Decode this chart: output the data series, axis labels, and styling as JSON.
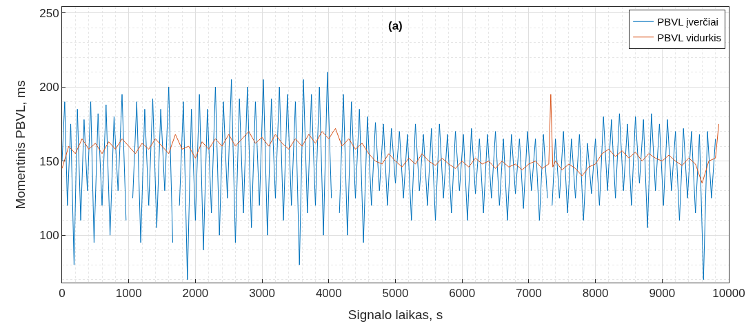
{
  "chart_data": {
    "type": "line",
    "xlabel": "Signalo laikas, s",
    "ylabel": "Momentinis PBVL, ms",
    "annotations": [
      "(a)"
    ],
    "xlim": [
      0,
      10000
    ],
    "xticks": [
      0,
      1000,
      2000,
      3000,
      4000,
      5000,
      6000,
      7000,
      8000,
      9000,
      10000
    ],
    "ylim": [
      68,
      254
    ],
    "yticks": [
      100,
      150,
      200,
      250
    ],
    "grid": true,
    "legend": "top right",
    "line_style": "solid",
    "marker": "none",
    "series": [
      {
        "name": "PBVL įverčiai",
        "color": "#0072bd",
        "x": [
          0,
          40,
          80,
          130,
          180,
          230,
          280,
          330,
          380,
          430,
          480,
          540,
          600,
          660,
          720,
          780,
          840,
          900,
          960,
          1010,
          1060,
          1120,
          1180,
          1240,
          1300,
          1360,
          1420,
          1480,
          1540,
          1600,
          1660,
          1700,
          1760,
          1820,
          1880,
          1940,
          2000,
          2060,
          2120,
          2180,
          2240,
          2300,
          2360,
          2420,
          2480,
          2540,
          2600,
          2660,
          2720,
          2780,
          2840,
          2900,
          2960,
          3020,
          3080,
          3140,
          3200,
          3260,
          3320,
          3380,
          3440,
          3500,
          3560,
          3620,
          3680,
          3740,
          3800,
          3860,
          3920,
          3980,
          4040,
          4100,
          4160,
          4220,
          4280,
          4340,
          4400,
          4460,
          4520,
          4580,
          4640,
          4700,
          4760,
          4820,
          4880,
          4940,
          5000,
          5060,
          5120,
          5180,
          5240,
          5300,
          5360,
          5420,
          5480,
          5540,
          5600,
          5660,
          5720,
          5780,
          5840,
          5900,
          5960,
          6020,
          6080,
          6140,
          6200,
          6260,
          6320,
          6380,
          6440,
          6500,
          6560,
          6620,
          6680,
          6740,
          6800,
          6860,
          6920,
          6980,
          7040,
          7100,
          7160,
          7220,
          7280,
          7330,
          7350,
          7400,
          7460,
          7520,
          7580,
          7640,
          7700,
          7760,
          7820,
          7880,
          7940,
          8000,
          8060,
          8120,
          8180,
          8240,
          8300,
          8360,
          8420,
          8480,
          8540,
          8600,
          8660,
          8720,
          8780,
          8840,
          8900,
          8960,
          9020,
          9080,
          9140,
          9200,
          9260,
          9320,
          9380,
          9440,
          9500,
          9560,
          9620,
          9680,
          9740,
          9800
        ],
        "values": [
          150,
          190,
          120,
          175,
          80,
          185,
          110,
          178,
          130,
          190,
          95,
          182,
          120,
          188,
          100,
          180,
          130,
          195,
          110,
          null,
          125,
          190,
          95,
          185,
          120,
          192,
          105,
          185,
          130,
          200,
          95,
          null,
          120,
          190,
          70,
          185,
          110,
          195,
          90,
          185,
          115,
          200,
          100,
          190,
          125,
          205,
          95,
          192,
          115,
          200,
          105,
          190,
          120,
          205,
          100,
          192,
          125,
          200,
          110,
          195,
          120,
          190,
          80,
          205,
          115,
          195,
          120,
          200,
          100,
          210,
          125,
          null,
          115,
          195,
          100,
          190,
          125,
          185,
          95,
          180,
          120,
          176,
          130,
          175,
          120,
          172,
          135,
          170,
          125,
          168,
          110,
          175,
          130,
          168,
          120,
          172,
          110,
          175,
          125,
          168,
          115,
          170,
          130,
          168,
          110,
          172,
          128,
          165,
          115,
          168,
          125,
          170,
          120,
          165,
          110,
          168,
          128,
          165,
          118,
          170,
          130,
          165,
          110,
          168,
          125,
          null,
          120,
          165,
          125,
          170,
          115,
          165,
          125,
          168,
          110,
          162,
          128,
          165,
          120,
          180,
          130,
          178,
          125,
          182,
          130,
          175,
          120,
          180,
          135,
          178,
          105,
          182,
          130,
          175,
          120,
          178,
          130,
          170,
          110,
          172,
          125,
          170,
          115,
          168,
          70,
          170,
          125,
          165
        ]
      },
      {
        "name": "PBVL vidurkis",
        "color": "#d95319",
        "x": [
          0,
          100,
          200,
          300,
          400,
          500,
          600,
          700,
          800,
          900,
          1000,
          1100,
          1200,
          1300,
          1400,
          1500,
          1600,
          1700,
          1800,
          1900,
          2000,
          2100,
          2200,
          2300,
          2400,
          2500,
          2600,
          2700,
          2800,
          2900,
          3000,
          3100,
          3200,
          3300,
          3400,
          3500,
          3600,
          3700,
          3800,
          3900,
          4000,
          4100,
          4200,
          4300,
          4400,
          4500,
          4600,
          4700,
          4800,
          4900,
          5000,
          5100,
          5200,
          5300,
          5400,
          5500,
          5600,
          5700,
          5800,
          5900,
          6000,
          6100,
          6200,
          6300,
          6400,
          6500,
          6600,
          6700,
          6800,
          6900,
          7000,
          7100,
          7200,
          7300,
          7330,
          7360,
          7400,
          7500,
          7600,
          7700,
          7800,
          7900,
          8000,
          8100,
          8200,
          8300,
          8400,
          8500,
          8600,
          8700,
          8800,
          8900,
          9000,
          9100,
          9200,
          9300,
          9400,
          9500,
          9600,
          9700,
          9800,
          9850
        ],
        "values": [
          145,
          160,
          155,
          165,
          158,
          162,
          155,
          163,
          158,
          165,
          160,
          155,
          162,
          158,
          165,
          160,
          155,
          168,
          158,
          160,
          152,
          163,
          158,
          165,
          160,
          168,
          160,
          165,
          170,
          162,
          166,
          160,
          168,
          162,
          158,
          165,
          160,
          168,
          162,
          170,
          165,
          172,
          160,
          165,
          158,
          162,
          155,
          150,
          148,
          155,
          150,
          146,
          152,
          148,
          155,
          150,
          147,
          152,
          148,
          145,
          150,
          146,
          152,
          148,
          150,
          145,
          150,
          146,
          148,
          144,
          148,
          150,
          145,
          148,
          195,
          146,
          150,
          144,
          148,
          145,
          140,
          146,
          148,
          155,
          158,
          153,
          157,
          152,
          156,
          150,
          155,
          152,
          150,
          154,
          150,
          147,
          152,
          148,
          135,
          150,
          152,
          175
        ]
      }
    ]
  }
}
